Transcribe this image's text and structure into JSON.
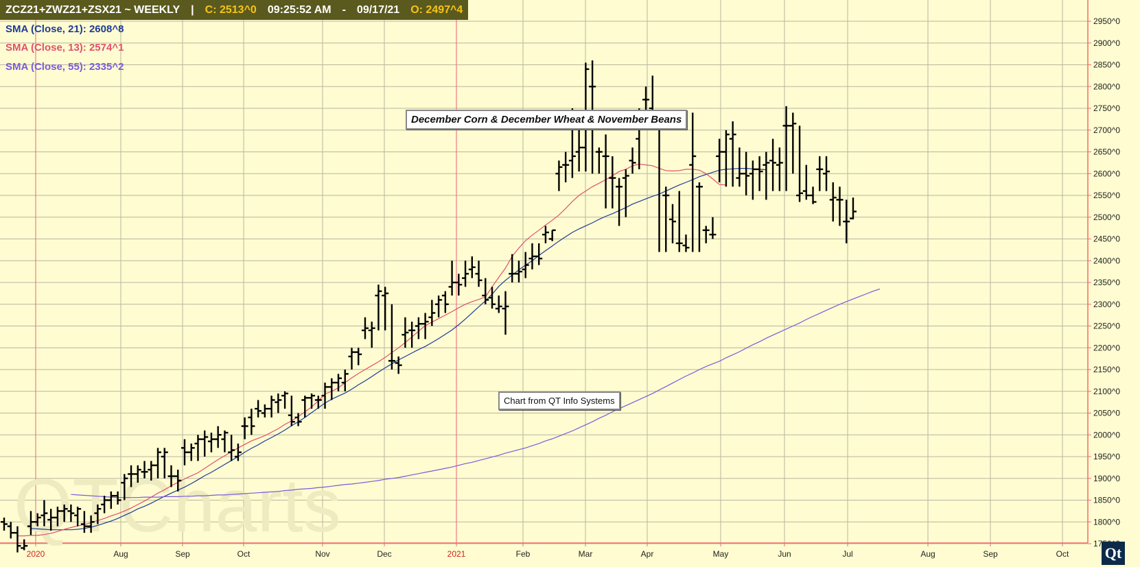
{
  "header": {
    "symbol": "ZCZ21+ZWZ21+ZSX21  ~  WEEKLY",
    "divider": "|",
    "close": "C: 2513^0",
    "time": "09:25:52 AM",
    "dash": "-",
    "date": "09/17/21",
    "open": "O: 2497^4"
  },
  "indicators": [
    {
      "label": "SMA (Close, 21): 2608^8",
      "color": "#1f3a9a"
    },
    {
      "label": "SMA (Close, 13): 2574^1",
      "color": "#e0506e"
    },
    {
      "label": "SMA (Close, 55): 2335^2",
      "color": "#7a5ae0"
    }
  ],
  "annotations": {
    "title": "December Corn & December Wheat & November Beans",
    "source": "Chart from QT Info Systems"
  },
  "watermark": "QTCharts",
  "logo": "Qt",
  "chart_data": {
    "type": "ohlc",
    "ylim": [
      1710,
      2950
    ],
    "y_ticks": [
      "1750^0",
      "1800^0",
      "1850^0",
      "1900^0",
      "1950^0",
      "2000^0",
      "2050^0",
      "2100^0",
      "2150^0",
      "2200^0",
      "2250^0",
      "2300^0",
      "2350^0",
      "2400^0",
      "2450^0",
      "2500^0",
      "2550^0",
      "2600^0",
      "2650^0",
      "2700^0",
      "2750^0",
      "2800^0",
      "2850^0",
      "2900^0",
      "2950^0"
    ],
    "x_labels": [
      "2020",
      "Aug",
      "Sep",
      "Oct",
      "Nov",
      "Dec",
      "2021",
      "Feb",
      "Mar",
      "Apr",
      "May",
      "Jun",
      "Jul",
      "Aug",
      "Sep",
      "Oct"
    ],
    "year_labels": [
      "2020",
      "2021"
    ],
    "bars": [
      [
        1800,
        1810,
        1780,
        1795
      ],
      [
        1790,
        1800,
        1762,
        1775
      ],
      [
        1775,
        1790,
        1730,
        1745
      ],
      [
        1740,
        1760,
        1735,
        1745
      ],
      [
        1790,
        1825,
        1770,
        1800
      ],
      [
        1800,
        1820,
        1790,
        1810
      ],
      [
        1815,
        1850,
        1790,
        1820
      ],
      [
        1805,
        1830,
        1780,
        1810
      ],
      [
        1810,
        1835,
        1790,
        1825
      ],
      [
        1825,
        1840,
        1800,
        1830
      ],
      [
        1825,
        1840,
        1800,
        1820
      ],
      [
        1815,
        1835,
        1790,
        1830
      ],
      [
        1795,
        1825,
        1775,
        1790
      ],
      [
        1790,
        1815,
        1775,
        1800
      ],
      [
        1820,
        1840,
        1795,
        1830
      ],
      [
        1840,
        1860,
        1820,
        1850
      ],
      [
        1850,
        1870,
        1830,
        1860
      ],
      [
        1860,
        1870,
        1840,
        1850
      ],
      [
        1890,
        1910,
        1850,
        1900
      ],
      [
        1910,
        1930,
        1880,
        1910
      ],
      [
        1910,
        1930,
        1890,
        1920
      ],
      [
        1915,
        1940,
        1900,
        1915
      ],
      [
        1920,
        1940,
        1895,
        1930
      ],
      [
        1930,
        1970,
        1900,
        1960
      ],
      [
        1950,
        1970,
        1900,
        1960
      ],
      [
        1905,
        1930,
        1880,
        1905
      ],
      [
        1905,
        1920,
        1870,
        1895
      ],
      [
        1970,
        1990,
        1930,
        1960
      ],
      [
        1960,
        1980,
        1940,
        1970
      ],
      [
        1980,
        2000,
        1940,
        1990
      ],
      [
        1990,
        2010,
        1950,
        1995
      ],
      [
        1985,
        2005,
        1960,
        1990
      ],
      [
        1990,
        2020,
        1970,
        2000
      ],
      [
        1990,
        2010,
        1960,
        2005
      ],
      [
        1960,
        2000,
        1940,
        1965
      ],
      [
        1950,
        1980,
        1940,
        1960
      ],
      [
        2020,
        2040,
        1990,
        2020
      ],
      [
        2040,
        2060,
        2000,
        2020
      ],
      [
        2060,
        2080,
        2040,
        2055
      ],
      [
        2050,
        2070,
        2040,
        2060
      ],
      [
        2060,
        2090,
        2040,
        2080
      ],
      [
        2075,
        2095,
        2050,
        2080
      ],
      [
        2090,
        2100,
        2060,
        2095
      ],
      [
        2045,
        2090,
        2020,
        2030
      ],
      [
        2040,
        2050,
        2020,
        2030
      ],
      [
        2080,
        2090,
        2040,
        2085
      ],
      [
        2085,
        2095,
        2060,
        2090
      ],
      [
        2080,
        2090,
        2060,
        2080
      ],
      [
        2090,
        2120,
        2060,
        2110
      ],
      [
        2110,
        2130,
        2080,
        2120
      ],
      [
        2120,
        2140,
        2100,
        2130
      ],
      [
        2120,
        2150,
        2100,
        2140
      ],
      [
        2180,
        2200,
        2150,
        2190
      ],
      [
        2190,
        2200,
        2160,
        2185
      ],
      [
        2240,
        2270,
        2220,
        2245
      ],
      [
        2240,
        2260,
        2200,
        2245
      ],
      [
        2320,
        2345,
        2240,
        2330
      ],
      [
        2320,
        2340,
        2240,
        2325
      ],
      [
        2170,
        2300,
        2150,
        2170
      ],
      [
        2165,
        2180,
        2140,
        2160
      ],
      [
        2230,
        2270,
        2200,
        2235
      ],
      [
        2240,
        2260,
        2200,
        2240
      ],
      [
        2250,
        2270,
        2220,
        2255
      ],
      [
        2255,
        2280,
        2220,
        2260
      ],
      [
        2270,
        2310,
        2250,
        2280
      ],
      [
        2300,
        2320,
        2270,
        2310
      ],
      [
        2320,
        2330,
        2280,
        2300
      ],
      [
        2340,
        2400,
        2320,
        2350
      ],
      [
        2350,
        2370,
        2320,
        2345
      ],
      [
        2360,
        2400,
        2340,
        2370
      ],
      [
        2380,
        2410,
        2360,
        2385
      ],
      [
        2370,
        2400,
        2340,
        2355
      ],
      [
        2320,
        2360,
        2300,
        2310
      ],
      [
        2315,
        2340,
        2290,
        2300
      ],
      [
        2290,
        2320,
        2280,
        2295
      ],
      [
        2290,
        2330,
        2230,
        2295
      ],
      [
        2370,
        2415,
        2350,
        2370
      ],
      [
        2370,
        2400,
        2350,
        2375
      ],
      [
        2380,
        2420,
        2360,
        2390
      ],
      [
        2405,
        2440,
        2380,
        2410
      ],
      [
        2410,
        2440,
        2390,
        2405
      ],
      [
        2460,
        2480,
        2440,
        2465
      ],
      [
        2450,
        2470,
        2445,
        2470
      ],
      [
        2600,
        2630,
        2560,
        2615
      ],
      [
        2620,
        2650,
        2580,
        2620
      ],
      [
        2630,
        2750,
        2590,
        2640
      ],
      [
        2650,
        2710,
        2605,
        2660
      ],
      [
        2660,
        2855,
        2605,
        2840
      ],
      [
        2800,
        2860,
        2600,
        2800
      ],
      [
        2650,
        2660,
        2600,
        2650
      ],
      [
        2640,
        2690,
        2520,
        2640
      ],
      [
        2590,
        2640,
        2520,
        2590
      ],
      [
        2570,
        2590,
        2480,
        2570
      ],
      [
        2590,
        2610,
        2500,
        2595
      ],
      [
        2630,
        2660,
        2600,
        2625
      ],
      [
        2680,
        2750,
        2610,
        2740
      ],
      [
        2770,
        2800,
        2700,
        2770
      ],
      [
        2750,
        2825,
        2700,
        2740
      ],
      [
        2710,
        2730,
        2420,
        2720
      ],
      [
        2550,
        2570,
        2420,
        2550
      ],
      [
        2495,
        2530,
        2440,
        2490
      ],
      [
        2440,
        2560,
        2420,
        2440
      ],
      [
        2435,
        2460,
        2420,
        2430
      ],
      [
        2620,
        2740,
        2420,
        2640
      ],
      [
        2570,
        2580,
        2420,
        2570
      ],
      [
        2470,
        2480,
        2440,
        2470
      ],
      [
        2460,
        2500,
        2450,
        2460
      ],
      [
        2640,
        2680,
        2580,
        2650
      ],
      [
        2650,
        2700,
        2570,
        2690
      ],
      [
        2680,
        2720,
        2570,
        2690
      ],
      [
        2590,
        2660,
        2570,
        2600
      ],
      [
        2600,
        2650,
        2550,
        2595
      ],
      [
        2600,
        2630,
        2540,
        2610
      ],
      [
        2610,
        2640,
        2560,
        2605
      ],
      [
        2620,
        2650,
        2540,
        2625
      ],
      [
        2630,
        2680,
        2560,
        2625
      ],
      [
        2620,
        2660,
        2560,
        2625
      ],
      [
        2710,
        2755,
        2560,
        2710
      ],
      [
        2710,
        2740,
        2600,
        2715
      ],
      [
        2550,
        2710,
        2535,
        2555
      ],
      [
        2560,
        2620,
        2540,
        2550
      ],
      [
        2550,
        2570,
        2530,
        2535
      ],
      [
        2610,
        2640,
        2560,
        2610
      ],
      [
        2600,
        2640,
        2560,
        2605
      ],
      [
        2540,
        2580,
        2490,
        2545
      ],
      [
        2540,
        2570,
        2480,
        2540
      ],
      [
        2490,
        2540,
        2440,
        2490
      ],
      [
        2497,
        2545,
        2495,
        2513
      ]
    ],
    "series": [
      {
        "name": "SMA (Close, 21)",
        "first_bar": 4,
        "values": [
          1785,
          1784,
          1783,
          1782,
          1782,
          1782,
          1782,
          1783,
          1785,
          1788,
          1792,
          1797,
          1802,
          1808,
          1815,
          1822,
          1830,
          1836,
          1843,
          1851,
          1859,
          1866,
          1873,
          1880,
          1888,
          1897,
          1906,
          1914,
          1923,
          1932,
          1941,
          1950,
          1960,
          1969,
          1977,
          1986,
          1994,
          2002,
          2011,
          2021,
          2030,
          2040,
          2051,
          2062,
          2073,
          2082,
          2089,
          2096,
          2105,
          2115,
          2124,
          2134,
          2144,
          2154,
          2163,
          2172,
          2180,
          2188,
          2196,
          2203,
          2212,
          2221,
          2231,
          2241,
          2253,
          2266,
          2280,
          2294,
          2308,
          2323,
          2341,
          2355,
          2367,
          2379,
          2390,
          2400,
          2412,
          2423,
          2434,
          2445,
          2455,
          2465,
          2473,
          2480,
          2487,
          2495,
          2502,
          2508,
          2515,
          2522,
          2530,
          2536,
          2542,
          2548,
          2553,
          2560,
          2567,
          2574,
          2580,
          2586,
          2593,
          2598,
          2603,
          2608,
          2610,
          2611,
          2612,
          2612,
          2611,
          2610,
          2609
        ]
      },
      {
        "name": "SMA (Close, 13)",
        "first_bar": 2,
        "values": [
          1768,
          1768,
          1769,
          1769,
          1771,
          1774,
          1778,
          1783,
          1787,
          1791,
          1794,
          1798,
          1803,
          1808,
          1814,
          1819,
          1825,
          1832,
          1840,
          1848,
          1857,
          1866,
          1874,
          1883,
          1891,
          1899,
          1906,
          1913,
          1923,
          1933,
          1943,
          1952,
          1961,
          1970,
          1978,
          1986,
          1992,
          1998,
          2006,
          2014,
          2024,
          2032,
          2042,
          2053,
          2064,
          2078,
          2094,
          2100,
          2108,
          2120,
          2131,
          2141,
          2150,
          2159,
          2168,
          2178,
          2189,
          2200,
          2212,
          2225,
          2238,
          2251,
          2259,
          2267,
          2275,
          2283,
          2292,
          2300,
          2306,
          2311,
          2317,
          2340,
          2362,
          2383,
          2410,
          2429,
          2446,
          2459,
          2470,
          2482,
          2493,
          2505,
          2520,
          2536,
          2550,
          2560,
          2570,
          2578,
          2586,
          2595,
          2605,
          2610,
          2618,
          2622,
          2620,
          2618,
          2612,
          2607,
          2606,
          2607,
          2610,
          2610,
          2608,
          2600,
          2588,
          2575,
          2574
        ]
      },
      {
        "name": "SMA (Close, 55)",
        "first_bar": 10,
        "values": [
          1863,
          1862,
          1861,
          1860,
          1859,
          1858,
          1857,
          1856,
          1856,
          1856,
          1856,
          1857,
          1857,
          1857,
          1858,
          1858,
          1858,
          1859,
          1859,
          1860,
          1860,
          1861,
          1862,
          1862,
          1863,
          1864,
          1865,
          1866,
          1867,
          1868,
          1869,
          1870,
          1872,
          1873,
          1875,
          1876,
          1877,
          1879,
          1880,
          1882,
          1884,
          1886,
          1887,
          1889,
          1891,
          1893,
          1895,
          1898,
          1900,
          1902,
          1905,
          1908,
          1911,
          1914,
          1917,
          1920,
          1923,
          1926,
          1930,
          1934,
          1937,
          1941,
          1945,
          1949,
          1953,
          1958,
          1962,
          1966,
          1970,
          1975,
          1980,
          1986,
          1991,
          1997,
          2003,
          2009,
          2016,
          2023,
          2030,
          2038,
          2045,
          2053,
          2060,
          2067,
          2074,
          2081,
          2088,
          2095,
          2103,
          2111,
          2119,
          2127,
          2135,
          2142,
          2150,
          2157,
          2163,
          2169,
          2177,
          2184,
          2191,
          2199,
          2207,
          2214,
          2222,
          2229,
          2236,
          2243,
          2250,
          2257,
          2265,
          2272,
          2279,
          2286,
          2293,
          2300,
          2306,
          2312,
          2318,
          2324,
          2330,
          2335
        ]
      }
    ]
  }
}
